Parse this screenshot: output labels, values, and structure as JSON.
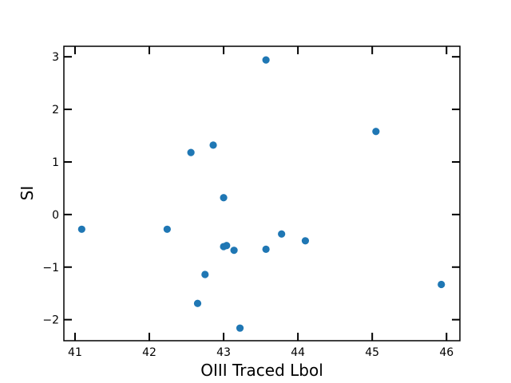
{
  "chart_data": {
    "type": "scatter",
    "title": "",
    "xlabel": "OIII Traced Lbol",
    "ylabel": "SI",
    "xlim": [
      40.85,
      46.18
    ],
    "ylim": [
      -2.4,
      3.2
    ],
    "xticks": [
      41,
      42,
      43,
      44,
      45,
      46
    ],
    "yticks": [
      -2,
      -1,
      0,
      1,
      2,
      3
    ],
    "xtick_labels": [
      "41",
      "42",
      "43",
      "44",
      "45",
      "46"
    ],
    "ytick_labels": [
      "−2",
      "−1",
      "0",
      "1",
      "2",
      "3"
    ],
    "grid": false,
    "legend": "none",
    "marker_color": "#1f77b4",
    "points": [
      {
        "x": 41.09,
        "y": -0.28
      },
      {
        "x": 42.24,
        "y": -0.28
      },
      {
        "x": 42.56,
        "y": 1.18
      },
      {
        "x": 42.65,
        "y": -1.69
      },
      {
        "x": 42.75,
        "y": -1.14
      },
      {
        "x": 42.86,
        "y": 1.32
      },
      {
        "x": 43.0,
        "y": 0.32
      },
      {
        "x": 43.0,
        "y": -0.61
      },
      {
        "x": 43.04,
        "y": -0.59
      },
      {
        "x": 43.14,
        "y": -0.68
      },
      {
        "x": 43.22,
        "y": -2.16
      },
      {
        "x": 43.57,
        "y": 2.94
      },
      {
        "x": 43.57,
        "y": -0.66
      },
      {
        "x": 43.78,
        "y": -0.37
      },
      {
        "x": 44.1,
        "y": -0.5
      },
      {
        "x": 45.05,
        "y": 1.58
      },
      {
        "x": 45.93,
        "y": -1.33
      }
    ]
  }
}
